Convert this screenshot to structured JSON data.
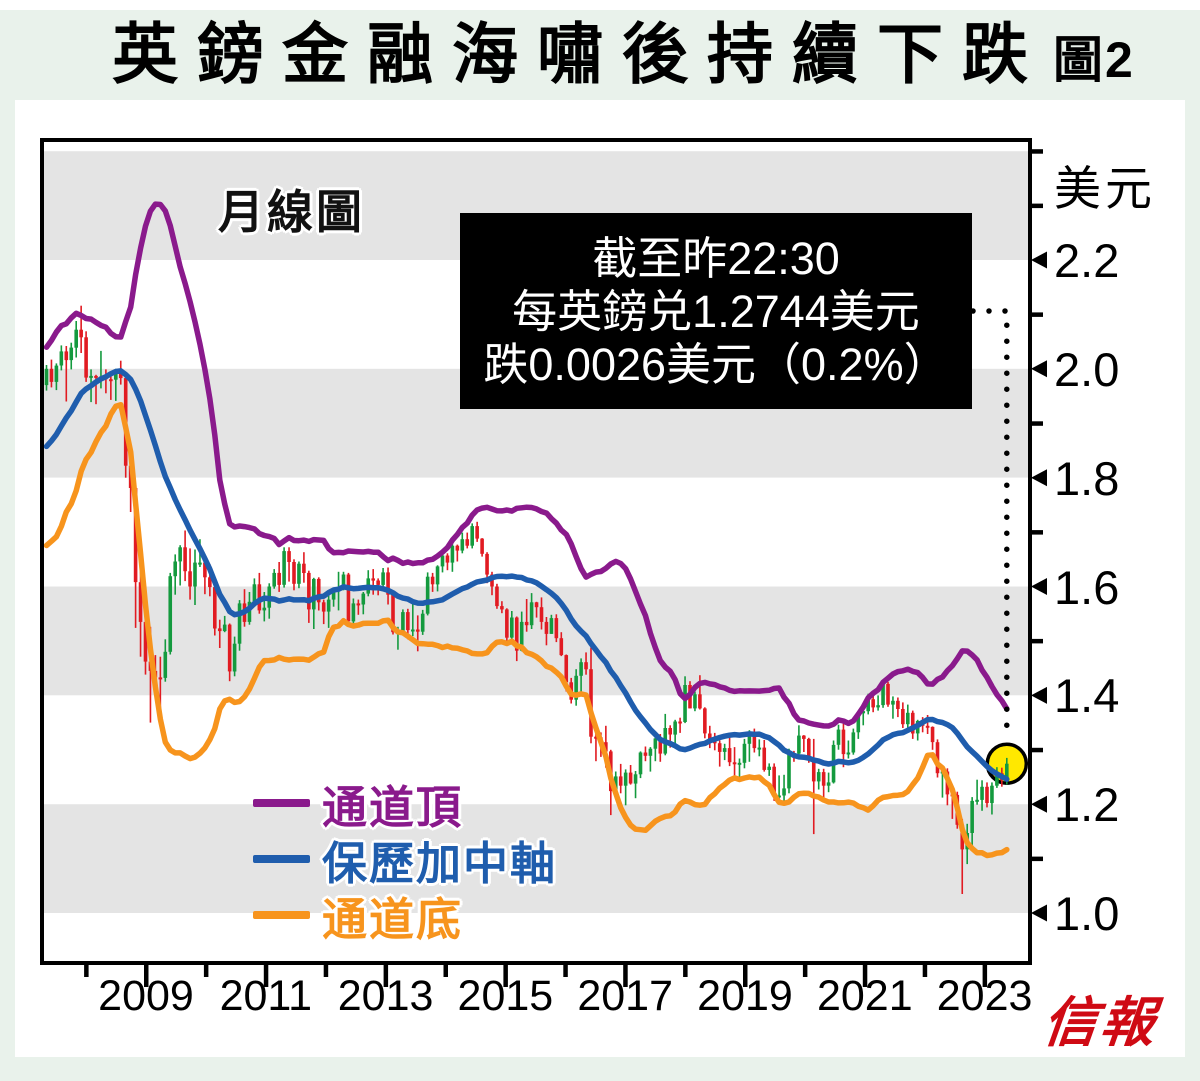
{
  "page": {
    "title": "英鎊金融海嘯後持續下跌",
    "figure_label": "圖2",
    "brand": "信報",
    "bg_color": "#e9f2eb"
  },
  "chart": {
    "type_label": "月線圖",
    "unit_label": "美元",
    "annotation": {
      "lines": [
        "截至昨22:30",
        "每英鎊兑1.2744美元",
        "跌0.0026美元（0.2%）"
      ]
    },
    "legend": [
      {
        "label": "通道頂",
        "color": "#8a1a8c"
      },
      {
        "label": "保歷加中軸",
        "color": "#1f5dad"
      },
      {
        "label": "通道底",
        "color": "#f7941d"
      }
    ],
    "colors": {
      "up_candle": "#149a3e",
      "down_candle": "#e11b22",
      "gray_band": "#e4e4e4",
      "highlight_fill": "#ffe800",
      "brand_red": "#cf0a14",
      "axis_black": "#000000"
    }
  },
  "chart_data": {
    "type": "candlestick",
    "title": "英鎊金融海嘯後持續下跌",
    "subtitle": "月線圖",
    "ylabel": "美元",
    "ylim": [
      0.91,
      2.42
    ],
    "ytick_labels": [
      "2.2",
      "2.0",
      "1.8",
      "1.6",
      "1.4",
      "1.2",
      "1.0"
    ],
    "y_minor_ticks": [
      2.4,
      2.3,
      2.1,
      1.9,
      1.7,
      1.5,
      1.3,
      1.1
    ],
    "gray_bands": [
      [
        2.2,
        2.4
      ],
      [
        1.8,
        2.0
      ],
      [
        1.4,
        1.6
      ],
      [
        1.0,
        1.2
      ]
    ],
    "x_year_labels": [
      2009,
      2011,
      2013,
      2015,
      2017,
      2019,
      2021,
      2023
    ],
    "x_tick_years": [
      2008,
      2009,
      2010,
      2011,
      2012,
      2013,
      2014,
      2015,
      2016,
      2017,
      2018,
      2019,
      2020,
      2021,
      2022,
      2023
    ],
    "start_month": "2007-04",
    "end_month": "2023-06",
    "last_price": 1.2744,
    "last_change": -0.0026,
    "last_change_pct": -0.2,
    "bollinger": {
      "window": 20,
      "mult": 2,
      "series": [
        "通道頂",
        "保歷加中軸",
        "通道底"
      ]
    },
    "pre_closes": [
      1.77,
      1.77,
      1.72,
      1.72,
      1.78,
      1.75,
      1.74,
      1.82,
      1.87,
      1.85,
      1.87,
      1.9,
      1.87,
      1.91,
      1.96,
      1.96,
      1.96,
      1.96,
      1.97
    ],
    "closes": [
      2.0,
      1.976,
      2.006,
      2.032,
      2.016,
      2.039,
      2.072,
      2.058,
      1.984,
      1.987,
      1.985,
      1.986,
      1.981,
      1.98,
      1.991,
      1.983,
      1.822,
      1.781,
      1.608,
      1.535,
      1.462,
      1.445,
      1.433,
      1.432,
      1.48,
      1.619,
      1.646,
      1.672,
      1.628,
      1.6,
      1.644,
      1.644,
      1.617,
      1.599,
      1.523,
      1.518,
      1.53,
      1.444,
      1.495,
      1.569,
      1.535,
      1.572,
      1.604,
      1.556,
      1.561,
      1.6,
      1.625,
      1.603,
      1.665,
      1.645,
      1.605,
      1.642,
      1.625,
      1.558,
      1.614,
      1.571,
      1.554,
      1.576,
      1.593,
      1.599,
      1.622,
      1.536,
      1.569,
      1.567,
      1.587,
      1.615,
      1.611,
      1.603,
      1.626,
      1.585,
      1.516,
      1.519,
      1.553,
      1.52,
      1.521,
      1.517,
      1.55,
      1.618,
      1.604,
      1.637,
      1.657,
      1.644,
      1.675,
      1.666,
      1.687,
      1.675,
      1.711,
      1.688,
      1.66,
      1.622,
      1.6,
      1.564,
      1.558,
      1.506,
      1.543,
      1.482,
      1.535,
      1.529,
      1.571,
      1.562,
      1.535,
      1.513,
      1.542,
      1.505,
      1.474,
      1.424,
      1.392,
      1.436,
      1.461,
      1.448,
      1.324,
      1.323,
      1.314,
      1.297,
      1.224,
      1.251,
      1.234,
      1.258,
      1.238,
      1.255,
      1.295,
      1.289,
      1.302,
      1.321,
      1.293,
      1.34,
      1.328,
      1.352,
      1.351,
      1.419,
      1.376,
      1.402,
      1.376,
      1.33,
      1.32,
      1.312,
      1.296,
      1.303,
      1.277,
      1.275,
      1.276,
      1.311,
      1.326,
      1.303,
      1.304,
      1.263,
      1.269,
      1.216,
      1.216,
      1.229,
      1.294,
      1.293,
      1.326,
      1.32,
      1.282,
      1.242,
      1.259,
      1.234,
      1.24,
      1.309,
      1.337,
      1.292,
      1.295,
      1.332,
      1.367,
      1.371,
      1.393,
      1.378,
      1.382,
      1.421,
      1.383,
      1.39,
      1.375,
      1.347,
      1.368,
      1.33,
      1.353,
      1.344,
      1.342,
      1.314,
      1.257,
      1.26,
      1.218,
      1.217,
      1.162,
      1.117,
      1.147,
      1.206,
      1.208,
      1.232,
      1.202,
      1.234,
      1.257,
      1.244,
      1.2744
    ],
    "highs": [
      2.007,
      2.017,
      2.01,
      2.043,
      2.042,
      2.048,
      2.088,
      2.116,
      2.069,
      1.999,
      1.989,
      2.033,
      1.999,
      1.99,
      2.0,
      2.015,
      1.985,
      1.863,
      1.782,
      1.628,
      1.536,
      1.526,
      1.474,
      1.471,
      1.503,
      1.625,
      1.659,
      1.676,
      1.703,
      1.67,
      1.668,
      1.687,
      1.653,
      1.641,
      1.602,
      1.539,
      1.546,
      1.532,
      1.508,
      1.575,
      1.595,
      1.59,
      1.615,
      1.625,
      1.59,
      1.606,
      1.632,
      1.645,
      1.672,
      1.672,
      1.65,
      1.646,
      1.663,
      1.629,
      1.616,
      1.617,
      1.576,
      1.585,
      1.597,
      1.627,
      1.627,
      1.625,
      1.578,
      1.576,
      1.59,
      1.63,
      1.632,
      1.615,
      1.634,
      1.635,
      1.588,
      1.526,
      1.558,
      1.559,
      1.572,
      1.547,
      1.557,
      1.626,
      1.625,
      1.639,
      1.658,
      1.661,
      1.684,
      1.677,
      1.699,
      1.699,
      1.716,
      1.719,
      1.689,
      1.663,
      1.627,
      1.605,
      1.573,
      1.56,
      1.555,
      1.545,
      1.554,
      1.577,
      1.588,
      1.572,
      1.58,
      1.544,
      1.548,
      1.549,
      1.516,
      1.475,
      1.432,
      1.448,
      1.468,
      1.479,
      1.488,
      1.344,
      1.332,
      1.344,
      1.3,
      1.26,
      1.274,
      1.264,
      1.272,
      1.261,
      1.297,
      1.306,
      1.305,
      1.327,
      1.329,
      1.366,
      1.345,
      1.355,
      1.359,
      1.435,
      1.426,
      1.407,
      1.437,
      1.378,
      1.344,
      1.331,
      1.317,
      1.311,
      1.326,
      1.305,
      1.284,
      1.32,
      1.336,
      1.339,
      1.319,
      1.318,
      1.275,
      1.275,
      1.253,
      1.254,
      1.302,
      1.298,
      1.345,
      1.327,
      1.322,
      1.32,
      1.265,
      1.265,
      1.258,
      1.317,
      1.346,
      1.35,
      1.317,
      1.339,
      1.368,
      1.374,
      1.403,
      1.401,
      1.4,
      1.423,
      1.425,
      1.398,
      1.396,
      1.387,
      1.383,
      1.372,
      1.355,
      1.36,
      1.364,
      1.343,
      1.319,
      1.267,
      1.266,
      1.228,
      1.223,
      1.173,
      1.164,
      1.213,
      1.245,
      1.244,
      1.24,
      1.24,
      1.268,
      1.267,
      1.285
    ],
    "lows": [
      1.96,
      1.966,
      1.961,
      1.997,
      1.94,
      1.999,
      2.021,
      2.029,
      1.976,
      1.939,
      1.935,
      1.964,
      1.955,
      1.943,
      1.941,
      1.971,
      1.8,
      1.737,
      1.524,
      1.471,
      1.438,
      1.35,
      1.409,
      1.373,
      1.425,
      1.475,
      1.585,
      1.602,
      1.61,
      1.576,
      1.566,
      1.636,
      1.586,
      1.582,
      1.51,
      1.487,
      1.516,
      1.426,
      1.435,
      1.482,
      1.526,
      1.53,
      1.563,
      1.55,
      1.536,
      1.541,
      1.596,
      1.59,
      1.598,
      1.609,
      1.593,
      1.597,
      1.607,
      1.533,
      1.522,
      1.556,
      1.531,
      1.524,
      1.563,
      1.556,
      1.593,
      1.526,
      1.525,
      1.548,
      1.549,
      1.582,
      1.585,
      1.584,
      1.598,
      1.567,
      1.512,
      1.484,
      1.51,
      1.503,
      1.509,
      1.481,
      1.511,
      1.547,
      1.59,
      1.591,
      1.626,
      1.63,
      1.627,
      1.646,
      1.661,
      1.67,
      1.67,
      1.682,
      1.655,
      1.606,
      1.584,
      1.559,
      1.551,
      1.498,
      1.497,
      1.463,
      1.481,
      1.517,
      1.522,
      1.543,
      1.521,
      1.492,
      1.513,
      1.498,
      1.472,
      1.407,
      1.385,
      1.381,
      1.404,
      1.438,
      1.312,
      1.279,
      1.287,
      1.267,
      1.18,
      1.215,
      1.22,
      1.198,
      1.236,
      1.211,
      1.248,
      1.279,
      1.26,
      1.279,
      1.278,
      1.29,
      1.304,
      1.306,
      1.331,
      1.349,
      1.376,
      1.371,
      1.374,
      1.321,
      1.303,
      1.299,
      1.269,
      1.281,
      1.27,
      1.249,
      1.249,
      1.266,
      1.278,
      1.295,
      1.288,
      1.26,
      1.252,
      1.206,
      1.199,
      1.197,
      1.22,
      1.278,
      1.287,
      1.296,
      1.276,
      1.145,
      1.227,
      1.206,
      1.222,
      1.238,
      1.3,
      1.268,
      1.284,
      1.291,
      1.32,
      1.345,
      1.365,
      1.369,
      1.372,
      1.377,
      1.379,
      1.357,
      1.36,
      1.34,
      1.341,
      1.32,
      1.317,
      1.332,
      1.329,
      1.3,
      1.249,
      1.212,
      1.198,
      1.173,
      1.155,
      1.035,
      1.09,
      1.115,
      1.199,
      1.188,
      1.194,
      1.181,
      1.23,
      1.232,
      1.236
    ]
  }
}
